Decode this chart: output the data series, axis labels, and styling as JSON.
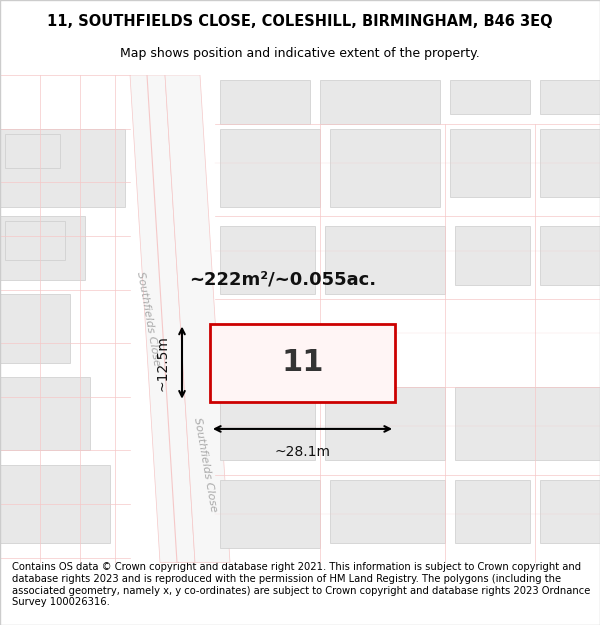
{
  "title_line1": "11, SOUTHFIELDS CLOSE, COLESHILL, BIRMINGHAM, B46 3EQ",
  "title_line2": "Map shows position and indicative extent of the property.",
  "footer_text": "Contains OS data © Crown copyright and database right 2021. This information is subject to Crown copyright and database rights 2023 and is reproduced with the permission of HM Land Registry. The polygons (including the associated geometry, namely x, y co-ordinates) are subject to Crown copyright and database rights 2023 Ordnance Survey 100026316.",
  "bg_color": "#f5f5f5",
  "map_bg": "#f0eeee",
  "road_color": "#f5c8c8",
  "building_fill": "#e8e8e8",
  "building_outline": "#cccccc",
  "highlight_fill": "#f5f0f0",
  "highlight_outline": "#dd0000",
  "road_line_color": "#e8a0a0",
  "street_label_color": "#aaaaaa",
  "area_label": "~222m²/~0.055ac.",
  "width_label": "~28.1m",
  "height_label": "~12.5m",
  "property_number": "11",
  "title_fontsize": 10.5,
  "subtitle_fontsize": 9,
  "footer_fontsize": 7.2,
  "map_extent": [
    0,
    600,
    50,
    550
  ]
}
